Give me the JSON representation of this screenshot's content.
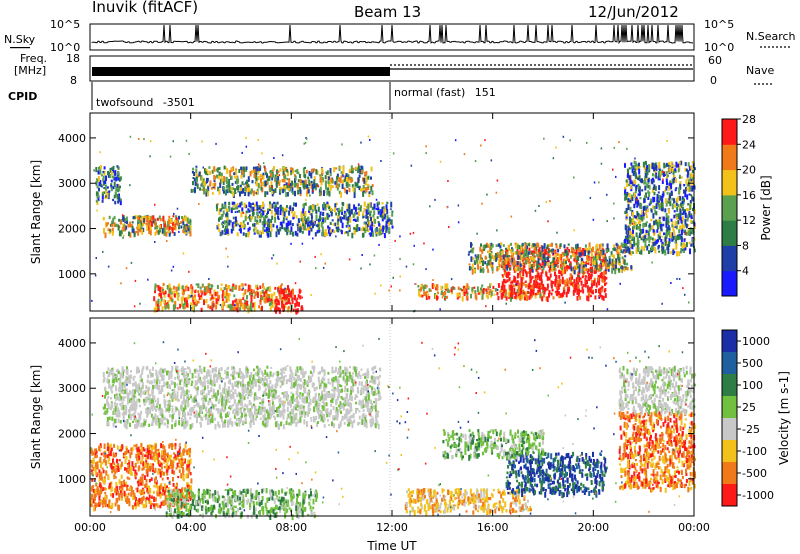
{
  "header": {
    "title": "Inuvik (fitACF)",
    "beam": "Beam 13",
    "date": "12/Jun/2012"
  },
  "summary": {
    "nsky_label": "N.Sky",
    "nsearch_label": "N.Search",
    "nsky_ticks": [
      "10^5",
      "10^0"
    ],
    "nsearch_ticks": [
      "10^5",
      "10^0"
    ],
    "freq_label": "Freq.",
    "freq_unit": "[MHz]",
    "freq_ticks": [
      "18",
      "8"
    ],
    "nave_label": "Nave",
    "nave_ticks": [
      "60",
      "0"
    ],
    "cpid_label": "CPID",
    "cpid_modes": [
      {
        "name": "twofsound",
        "id": "-3501"
      },
      {
        "name": "normal (fast)",
        "id": "151"
      }
    ]
  },
  "colors": {
    "power": [
      "#1a1aff",
      "#1f3fa8",
      "#2e7d45",
      "#5aa04f",
      "#f2c21a",
      "#f07a1a",
      "#ff1a1a"
    ],
    "velocity": [
      "#1a2ea8",
      "#1f5fa0",
      "#2e7d45",
      "#72c040",
      "#c8c8c8",
      "#f2c21a",
      "#f07a1a",
      "#ff1a1a"
    ]
  },
  "chart_data": [
    {
      "type": "heatmap",
      "name": "Power",
      "ylabel": "Slant Range [km]",
      "xlabel": "",
      "x_ticks": [
        "00:00",
        "04:00",
        "08:00",
        "12:00",
        "16:00",
        "20:00",
        "00:00"
      ],
      "xlim_hours": [
        0,
        24
      ],
      "ylim": [
        180,
        4550
      ],
      "y_ticks": [
        1000,
        2000,
        3000,
        4000
      ],
      "colorbar": {
        "label": "Power [dB]",
        "ticks": [
          4,
          8,
          12,
          16,
          20,
          24,
          28
        ],
        "range": [
          0,
          32
        ]
      },
      "regions": [
        {
          "h": [
            0.2,
            1.2
          ],
          "km": [
            2600,
            3400
          ],
          "level": "mixed"
        },
        {
          "h": [
            0.5,
            4.0
          ],
          "km": [
            1900,
            2300
          ],
          "level": "medium"
        },
        {
          "h": [
            1.8,
            3.5
          ],
          "km": [
            2000,
            2300
          ],
          "level": "high"
        },
        {
          "h": [
            2.5,
            8.0
          ],
          "km": [
            250,
            800
          ],
          "level": "high"
        },
        {
          "h": [
            7.3,
            8.4
          ],
          "km": [
            200,
            700
          ],
          "level": "very-high"
        },
        {
          "h": [
            4.0,
            11.2
          ],
          "km": [
            2800,
            3400
          ],
          "level": "medium"
        },
        {
          "h": [
            5.0,
            12.0
          ],
          "km": [
            1900,
            2600
          ],
          "level": "mixed"
        },
        {
          "h": [
            13.0,
            18.0
          ],
          "km": [
            500,
            800
          ],
          "level": "high"
        },
        {
          "h": [
            16.3,
            20.5
          ],
          "km": [
            500,
            1600
          ],
          "level": "very-high"
        },
        {
          "h": [
            15.0,
            21.5
          ],
          "km": [
            1100,
            1700
          ],
          "level": "medium"
        },
        {
          "h": [
            21.2,
            24.0
          ],
          "km": [
            1500,
            3500
          ],
          "level": "mixed"
        }
      ]
    },
    {
      "type": "heatmap",
      "name": "Velocity",
      "ylabel": "Slant Range [km]",
      "xlabel": "Time UT",
      "x_ticks": [
        "00:00",
        "04:00",
        "08:00",
        "12:00",
        "16:00",
        "20:00",
        "00:00"
      ],
      "xlim_hours": [
        0,
        24
      ],
      "ylim": [
        180,
        4550
      ],
      "y_ticks": [
        1000,
        2000,
        3000,
        4000
      ],
      "colorbar": {
        "label": "Velocity [m s-1]",
        "ticks": [
          1000,
          500,
          100,
          25,
          -25,
          -100,
          -500,
          -1000
        ]
      },
      "regions": [
        {
          "h": [
            0.0,
            4.0
          ],
          "km": [
            400,
            1800
          ],
          "level": "negative"
        },
        {
          "h": [
            0.5,
            11.5
          ],
          "km": [
            2200,
            3500
          ],
          "level": "near-zero"
        },
        {
          "h": [
            3.0,
            9.0
          ],
          "km": [
            200,
            800
          ],
          "level": "positive-low"
        },
        {
          "h": [
            12.5,
            17.5
          ],
          "km": [
            300,
            800
          ],
          "level": "negative-low"
        },
        {
          "h": [
            16.5,
            20.5
          ],
          "km": [
            700,
            1600
          ],
          "level": "positive-high"
        },
        {
          "h": [
            14.0,
            18.0
          ],
          "km": [
            1500,
            2100
          ],
          "level": "positive-low"
        },
        {
          "h": [
            21.0,
            24.0
          ],
          "km": [
            800,
            2500
          ],
          "level": "negative"
        },
        {
          "h": [
            21.0,
            24.0
          ],
          "km": [
            2500,
            3500
          ],
          "level": "near-zero"
        }
      ]
    }
  ]
}
